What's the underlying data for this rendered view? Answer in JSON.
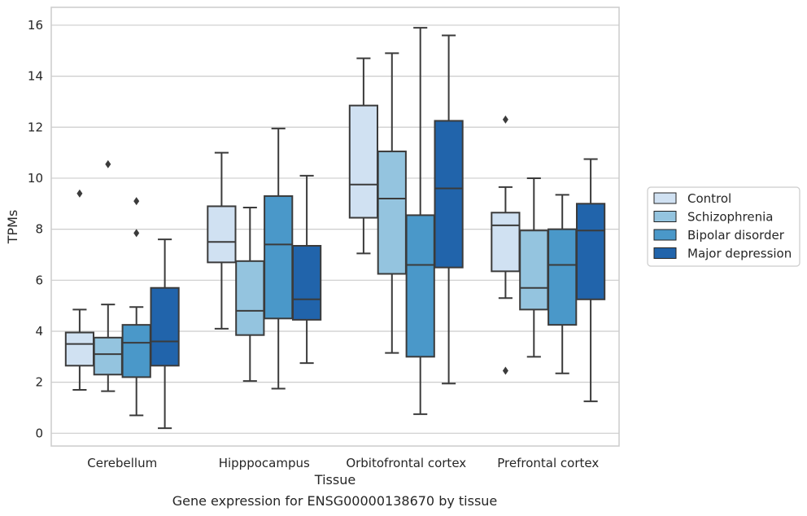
{
  "caption": "Gene expression for ENSG00000138670 by tissue",
  "chart_data": {
    "type": "box",
    "xlabel": "Tissue",
    "ylabel": "TPMs",
    "ylim": [
      -0.5,
      16.7
    ],
    "yticks": [
      0,
      2,
      4,
      6,
      8,
      10,
      12,
      14,
      16
    ],
    "grid": true,
    "legend_position": "right",
    "categories": [
      "Cerebellum",
      "Hipppocampus",
      "Orbitofrontal cortex",
      "Prefrontal cortex"
    ],
    "series": [
      {
        "name": "Control",
        "color": "#d0e1f2",
        "boxes": [
          {
            "whislo": 1.7,
            "q1": 2.65,
            "med": 3.5,
            "q3": 3.95,
            "whishi": 4.85,
            "fliers": [
              9.4
            ]
          },
          {
            "whislo": 4.1,
            "q1": 6.7,
            "med": 7.5,
            "q3": 8.9,
            "whishi": 11.0,
            "fliers": []
          },
          {
            "whislo": 7.05,
            "q1": 8.45,
            "med": 9.75,
            "q3": 12.85,
            "whishi": 14.7,
            "fliers": []
          },
          {
            "whislo": 5.3,
            "q1": 6.35,
            "med": 8.15,
            "q3": 8.65,
            "whishi": 9.65,
            "fliers": [
              12.3,
              2.45
            ]
          }
        ]
      },
      {
        "name": "Schizophrenia",
        "color": "#94c4df",
        "boxes": [
          {
            "whislo": 1.65,
            "q1": 2.3,
            "med": 3.1,
            "q3": 3.75,
            "whishi": 5.05,
            "fliers": [
              10.55
            ]
          },
          {
            "whislo": 2.05,
            "q1": 3.85,
            "med": 4.8,
            "q3": 6.75,
            "whishi": 8.85,
            "fliers": []
          },
          {
            "whislo": 3.15,
            "q1": 6.25,
            "med": 9.2,
            "q3": 11.05,
            "whishi": 14.9,
            "fliers": []
          },
          {
            "whislo": 3.0,
            "q1": 4.85,
            "med": 5.7,
            "q3": 7.95,
            "whishi": 10.0,
            "fliers": []
          }
        ]
      },
      {
        "name": "Bipolar disorder",
        "color": "#4a98c9",
        "boxes": [
          {
            "whislo": 0.7,
            "q1": 2.2,
            "med": 3.55,
            "q3": 4.25,
            "whishi": 4.95,
            "fliers": [
              9.1,
              7.85
            ]
          },
          {
            "whislo": 1.75,
            "q1": 4.5,
            "med": 7.4,
            "q3": 9.3,
            "whishi": 11.95,
            "fliers": []
          },
          {
            "whislo": 0.75,
            "q1": 3.0,
            "med": 6.6,
            "q3": 8.55,
            "whishi": 15.9,
            "fliers": []
          },
          {
            "whislo": 2.35,
            "q1": 4.25,
            "med": 6.6,
            "q3": 8.0,
            "whishi": 9.35,
            "fliers": []
          }
        ]
      },
      {
        "name": "Major depression",
        "color": "#2164ab",
        "boxes": [
          {
            "whislo": 0.2,
            "q1": 2.65,
            "med": 3.6,
            "q3": 5.7,
            "whishi": 7.6,
            "fliers": []
          },
          {
            "whislo": 2.75,
            "q1": 4.45,
            "med": 5.25,
            "q3": 7.35,
            "whishi": 10.1,
            "fliers": []
          },
          {
            "whislo": 1.95,
            "q1": 6.5,
            "med": 9.6,
            "q3": 12.25,
            "whishi": 15.6,
            "fliers": []
          },
          {
            "whislo": 1.25,
            "q1": 5.25,
            "med": 7.95,
            "q3": 9.0,
            "whishi": 10.75,
            "fliers": []
          }
        ]
      }
    ]
  }
}
